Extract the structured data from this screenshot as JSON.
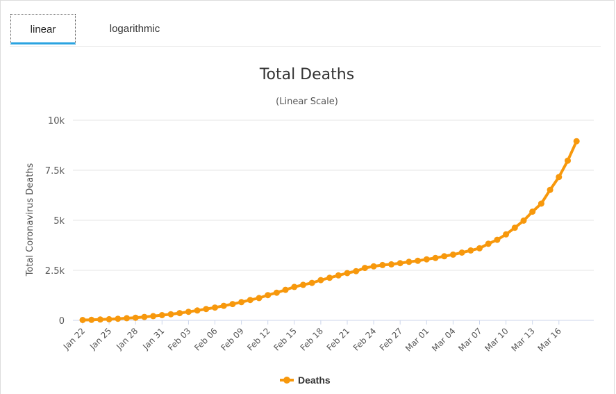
{
  "tabs": {
    "linear": "linear",
    "logarithmic": "logarithmic"
  },
  "colors": {
    "series": "#f7980c",
    "tab_active": "#2aa3e0",
    "grid": "#e6e6e6"
  },
  "chart_data": {
    "type": "line",
    "title": "Total Deaths",
    "subtitle": "(Linear Scale)",
    "xlabel": "",
    "ylabel": "Total Coronavirus Deaths",
    "ylim": [
      0,
      10000
    ],
    "y_ticks": [
      0,
      2500,
      5000,
      7500,
      10000
    ],
    "y_tick_labels": [
      "0",
      "2.5k",
      "5k",
      "7.5k",
      "10k"
    ],
    "x_tick_labels": [
      "Jan 22",
      "Jan 25",
      "Jan 28",
      "Jan 31",
      "Feb 03",
      "Feb 06",
      "Feb 09",
      "Feb 12",
      "Feb 15",
      "Feb 18",
      "Feb 21",
      "Feb 24",
      "Feb 27",
      "Mar 01",
      "Mar 04",
      "Mar 07",
      "Mar 10",
      "Mar 13",
      "Mar 16"
    ],
    "legend": "bottom-center",
    "series": [
      {
        "name": "Deaths",
        "values": [
          17,
          25,
          41,
          56,
          80,
          106,
          132,
          170,
          213,
          259,
          304,
          362,
          426,
          492,
          565,
          638,
          724,
          813,
          910,
          1018,
          1115,
          1261,
          1383,
          1526,
          1669,
          1775,
          1873,
          2009,
          2126,
          2247,
          2360,
          2460,
          2618,
          2699,
          2763,
          2800,
          2858,
          2923,
          2977,
          3050,
          3117,
          3202,
          3285,
          3387,
          3494,
          3599,
          3827,
          4025,
          4296,
          4628,
          4981,
          5429,
          5833,
          6520,
          7162,
          7979,
          8951
        ]
      }
    ]
  }
}
